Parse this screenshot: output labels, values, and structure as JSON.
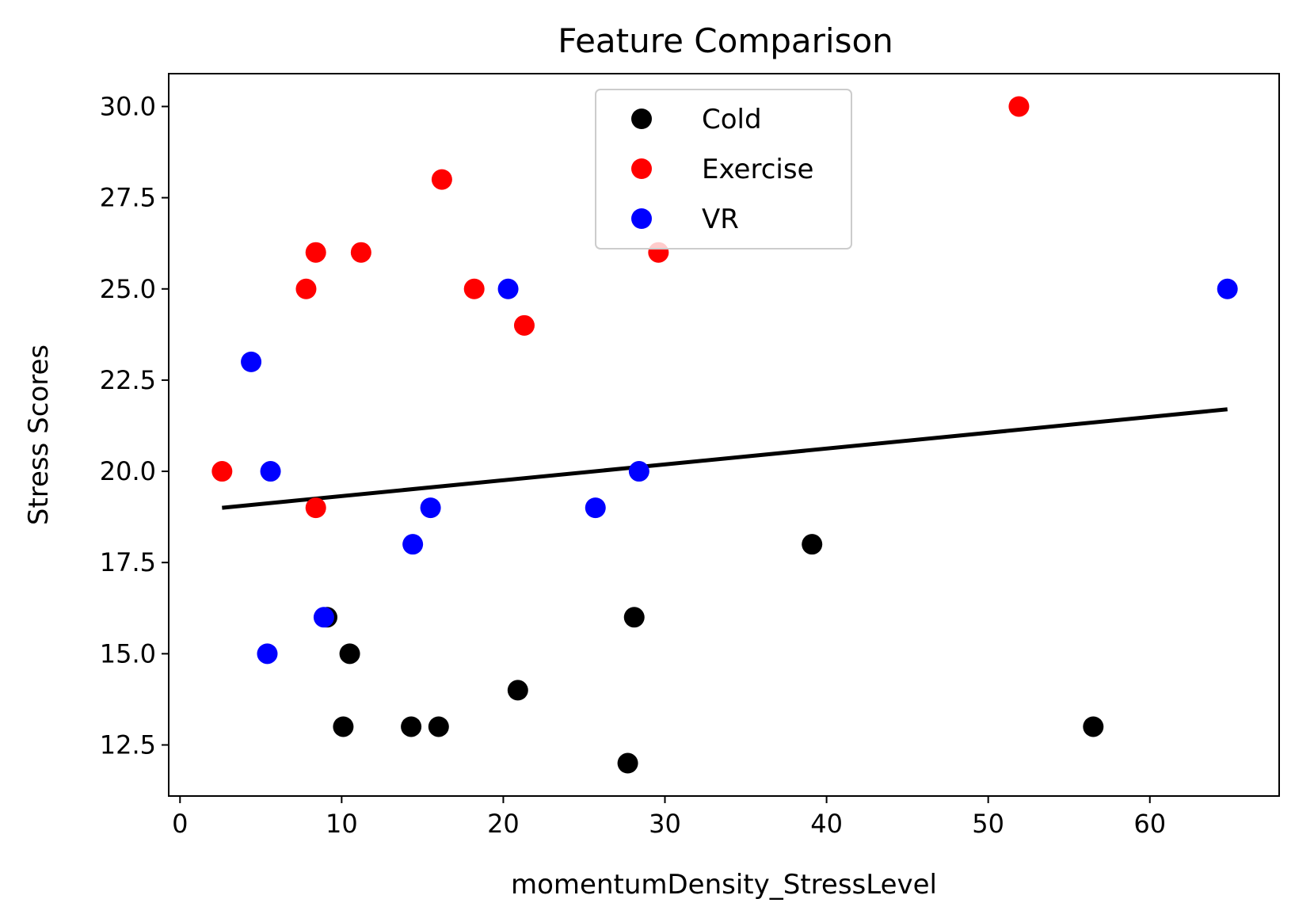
{
  "chart_data": {
    "type": "scatter",
    "title": "Feature Comparison",
    "xlabel": "momentumDensity_StressLevel",
    "ylabel": "Stress Scores",
    "xlim": [
      -0.7,
      68
    ],
    "ylim": [
      11.1,
      30.9
    ],
    "xticks": [
      0,
      10,
      20,
      30,
      40,
      50,
      60
    ],
    "yticks": [
      12.5,
      15.0,
      17.5,
      20.0,
      22.5,
      25.0,
      27.5,
      30.0
    ],
    "ytick_labels": [
      "12.5",
      "15.0",
      "17.5",
      "20.0",
      "22.5",
      "25.0",
      "27.5",
      "30.0"
    ],
    "grid": false,
    "legend_position": "upper center",
    "series": [
      {
        "name": "Cold",
        "color": "#000000",
        "points": [
          {
            "x": 9.1,
            "y": 16
          },
          {
            "x": 10.5,
            "y": 15
          },
          {
            "x": 10.1,
            "y": 13
          },
          {
            "x": 14.3,
            "y": 13
          },
          {
            "x": 16.0,
            "y": 13
          },
          {
            "x": 20.9,
            "y": 14
          },
          {
            "x": 27.7,
            "y": 12
          },
          {
            "x": 28.1,
            "y": 16
          },
          {
            "x": 39.1,
            "y": 18
          },
          {
            "x": 56.5,
            "y": 13
          }
        ]
      },
      {
        "name": "Exercise",
        "color": "#ff0000",
        "points": [
          {
            "x": 2.6,
            "y": 20
          },
          {
            "x": 7.8,
            "y": 25
          },
          {
            "x": 8.4,
            "y": 26
          },
          {
            "x": 8.4,
            "y": 19
          },
          {
            "x": 11.2,
            "y": 26
          },
          {
            "x": 16.2,
            "y": 28
          },
          {
            "x": 18.2,
            "y": 25
          },
          {
            "x": 21.3,
            "y": 24
          },
          {
            "x": 29.6,
            "y": 26
          },
          {
            "x": 51.9,
            "y": 30
          }
        ]
      },
      {
        "name": "VR",
        "color": "#0000ff",
        "points": [
          {
            "x": 4.4,
            "y": 23
          },
          {
            "x": 5.6,
            "y": 20
          },
          {
            "x": 5.4,
            "y": 15
          },
          {
            "x": 8.9,
            "y": 16
          },
          {
            "x": 14.4,
            "y": 18
          },
          {
            "x": 15.5,
            "y": 19
          },
          {
            "x": 20.3,
            "y": 25
          },
          {
            "x": 25.7,
            "y": 19
          },
          {
            "x": 28.4,
            "y": 20
          },
          {
            "x": 64.8,
            "y": 25
          }
        ]
      }
    ],
    "trend_line": {
      "color": "#000000",
      "points": [
        {
          "x": 2.6,
          "y": 19.0
        },
        {
          "x": 64.8,
          "y": 21.7
        }
      ]
    }
  }
}
